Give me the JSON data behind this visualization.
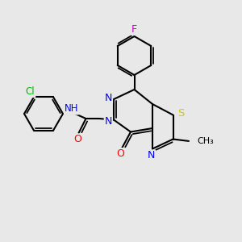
{
  "background_color": "#e8e8e8",
  "bond_color": "#000000",
  "atom_colors": {
    "N": "#0000ff",
    "O": "#ff0000",
    "S": "#cccc00",
    "F": "#cc00cc",
    "Cl": "#00bb00",
    "H": "#555555",
    "C": "#000000"
  },
  "figsize": [
    3.0,
    3.0
  ],
  "dpi": 100
}
